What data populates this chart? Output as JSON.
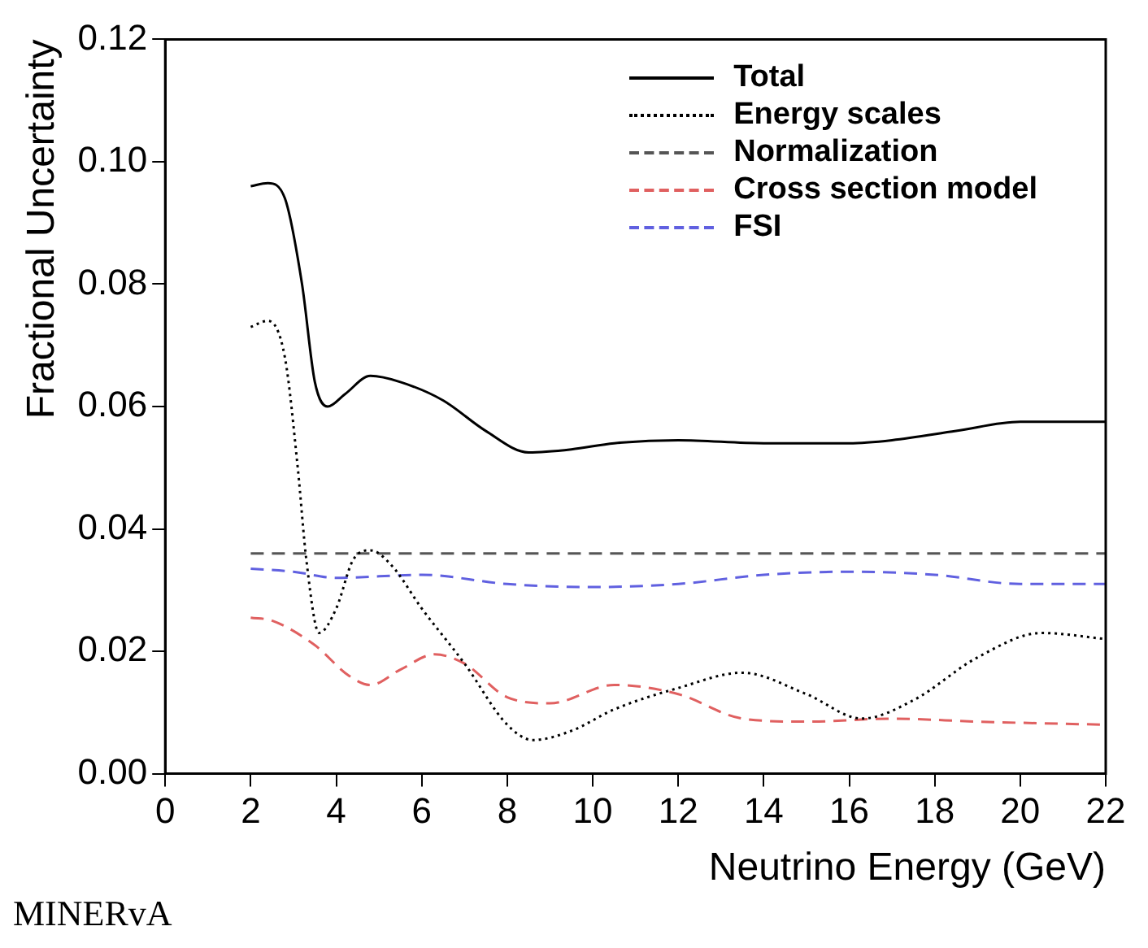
{
  "chart_data": {
    "type": "line",
    "xlabel": "Neutrino Energy (GeV)",
    "ylabel": "Fractional Uncertainty",
    "annotations": [
      "MINERvA"
    ],
    "xlim": [
      0,
      22
    ],
    "ylim": [
      0,
      0.12
    ],
    "xticks": [
      0,
      2,
      4,
      6,
      8,
      10,
      12,
      14,
      16,
      18,
      20,
      22
    ],
    "yticks": [
      {
        "value": 0,
        "label": "0.00"
      },
      {
        "value": 0.02,
        "label": "0.02"
      },
      {
        "value": 0.04,
        "label": "0.04"
      },
      {
        "value": 0.06,
        "label": "0.06"
      },
      {
        "value": 0.08,
        "label": "0.08"
      },
      {
        "value": 0.1,
        "label": "0.10"
      },
      {
        "value": 0.12,
        "label": "0.12"
      }
    ],
    "grid": false,
    "legend": "top right",
    "marker": "none",
    "series": [
      {
        "name": "Total",
        "color": "#000000",
        "line_style": "solid",
        "x": [
          2,
          2.4,
          2.8,
          3.2,
          3.5,
          3.8,
          4.2,
          4.8,
          5.5,
          6.5,
          7.5,
          8.5,
          9.5,
          10.5,
          12,
          14,
          16,
          17,
          18.5,
          20,
          22
        ],
        "values": [
          0.096,
          0.0965,
          0.094,
          0.08,
          0.064,
          0.06,
          0.062,
          0.065,
          0.064,
          0.061,
          0.056,
          0.0525,
          0.053,
          0.054,
          0.0545,
          0.054,
          0.054,
          0.0545,
          0.056,
          0.0575,
          0.0575
        ]
      },
      {
        "name": "Energy scales",
        "color": "#000000",
        "line_style": "dotted",
        "x": [
          2,
          2.4,
          2.8,
          3.1,
          3.3,
          3.6,
          4,
          4.4,
          4.8,
          5.3,
          6,
          7,
          8,
          8.6,
          9.5,
          10.5,
          12,
          13.5,
          15,
          16.3,
          17.5,
          19,
          20.5,
          22
        ],
        "values": [
          0.073,
          0.074,
          0.068,
          0.05,
          0.035,
          0.023,
          0.027,
          0.035,
          0.0365,
          0.034,
          0.027,
          0.018,
          0.008,
          0.0055,
          0.007,
          0.0105,
          0.014,
          0.0165,
          0.013,
          0.009,
          0.012,
          0.019,
          0.023,
          0.022
        ]
      },
      {
        "name": "Normalization",
        "color": "#555555",
        "line_style": "dashed",
        "x": [
          2,
          22
        ],
        "values": [
          0.036,
          0.036
        ]
      },
      {
        "name": "Cross section model",
        "color": "#e06060",
        "line_style": "dashed",
        "x": [
          2,
          2.5,
          3.5,
          4.3,
          4.8,
          5.5,
          6.3,
          7,
          8,
          9,
          10.5,
          12,
          13.5,
          15,
          17,
          19,
          22
        ],
        "values": [
          0.0255,
          0.025,
          0.021,
          0.016,
          0.0145,
          0.017,
          0.0195,
          0.018,
          0.0125,
          0.0115,
          0.0145,
          0.013,
          0.009,
          0.0085,
          0.009,
          0.0085,
          0.008
        ]
      },
      {
        "name": "FSI",
        "color": "#6060e0",
        "line_style": "dashed",
        "x": [
          2,
          3,
          4,
          6,
          8,
          10,
          12,
          14,
          16,
          18,
          20,
          22
        ],
        "values": [
          0.0335,
          0.033,
          0.032,
          0.0325,
          0.031,
          0.0305,
          0.031,
          0.0325,
          0.033,
          0.0325,
          0.031,
          0.031
        ]
      }
    ]
  }
}
